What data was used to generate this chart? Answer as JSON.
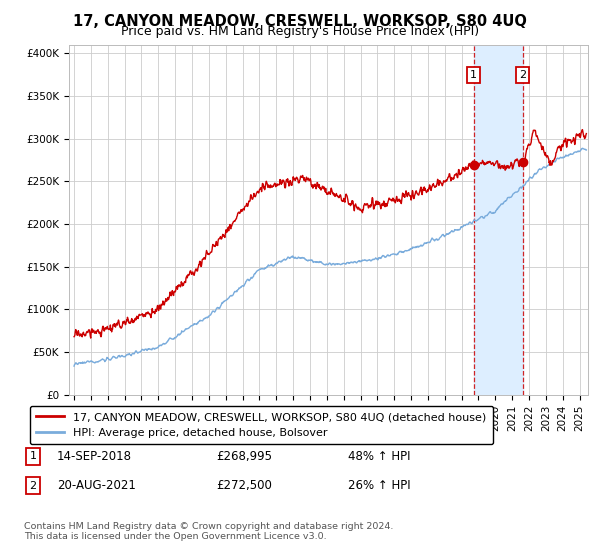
{
  "title": "17, CANYON MEADOW, CRESWELL, WORKSOP, S80 4UQ",
  "subtitle": "Price paid vs. HM Land Registry's House Price Index (HPI)",
  "ylabel_ticks": [
    "£0",
    "£50K",
    "£100K",
    "£150K",
    "£200K",
    "£250K",
    "£300K",
    "£350K",
    "£400K"
  ],
  "ytick_values": [
    0,
    50000,
    100000,
    150000,
    200000,
    250000,
    300000,
    350000,
    400000
  ],
  "ylim": [
    0,
    410000
  ],
  "xlim_start": 1994.7,
  "xlim_end": 2025.5,
  "transaction1": {
    "date": "14-SEP-2018",
    "price": 268995,
    "hpi_pct": "48%",
    "label": "1",
    "x": 2018.71
  },
  "transaction2": {
    "date": "20-AUG-2021",
    "price": 272500,
    "hpi_pct": "26%",
    "label": "2",
    "x": 2021.63
  },
  "legend_label_red": "17, CANYON MEADOW, CRESWELL, WORKSOP, S80 4UQ (detached house)",
  "legend_label_blue": "HPI: Average price, detached house, Bolsover",
  "footnote": "Contains HM Land Registry data © Crown copyright and database right 2024.\nThis data is licensed under the Open Government Licence v3.0.",
  "red_color": "#cc0000",
  "blue_color": "#7aacdc",
  "shade_color": "#ddeeff",
  "grid_color": "#cccccc",
  "box_edge_color": "#cc0000",
  "title_fontsize": 10.5,
  "subtitle_fontsize": 9,
  "tick_fontsize": 7.5,
  "legend_fontsize": 8
}
